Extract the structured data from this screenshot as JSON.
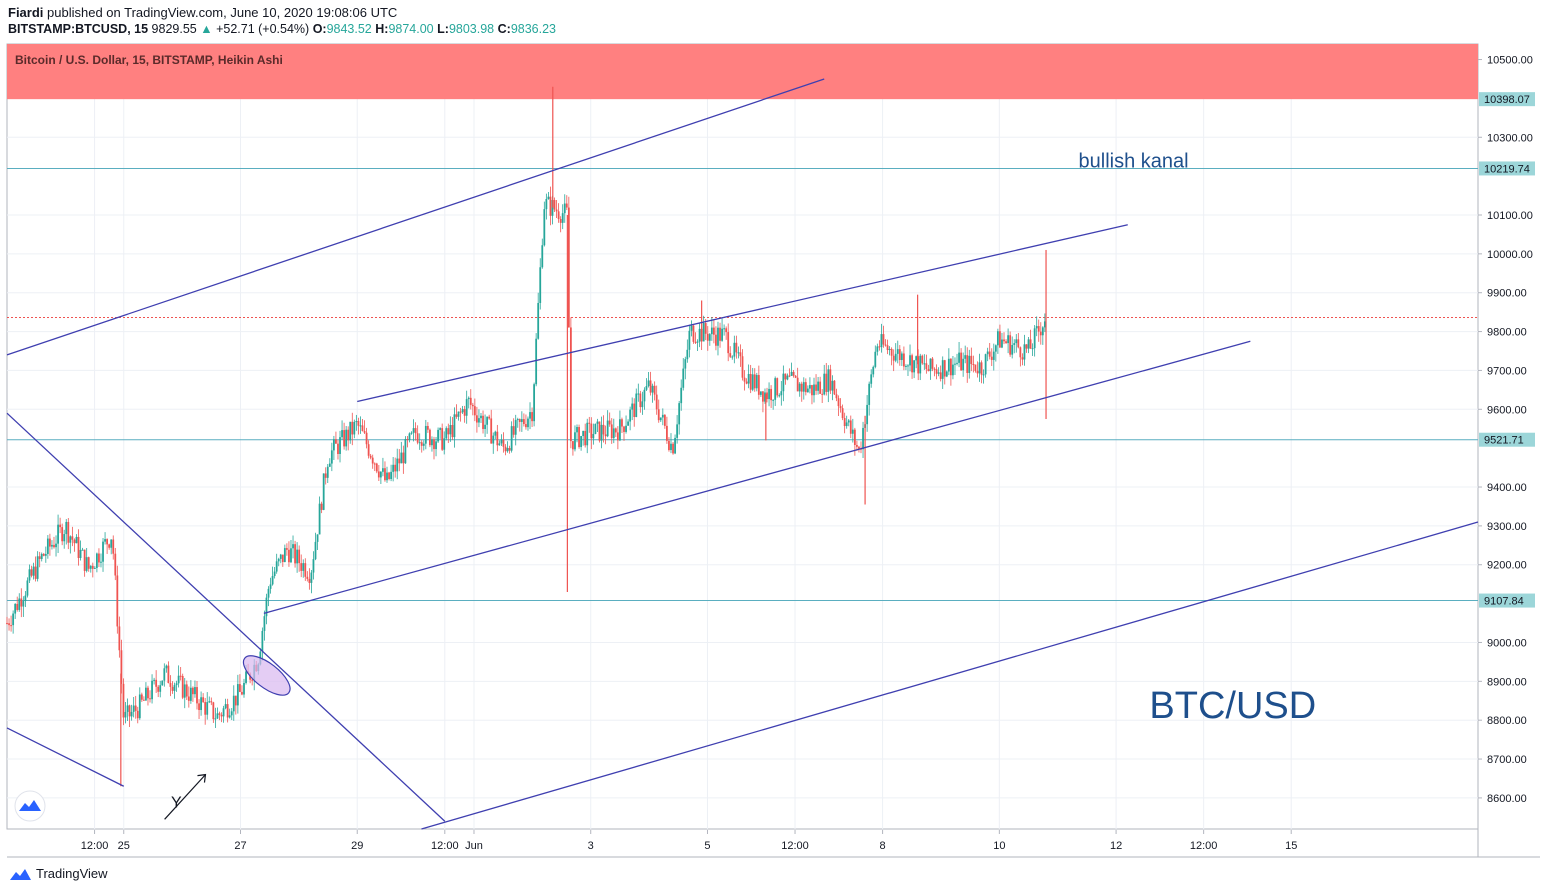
{
  "header": {
    "publisher": "Fiardi",
    "published_text": "published on TradingView.com, June 10, 2020 19:08:06 UTC",
    "symbol": "BITSTAMP:BTCUSD, 15",
    "last": "9829.55",
    "change": "+52.71 (+0.54%)",
    "o_label": "O:",
    "o": "9843.52",
    "h_label": "H:",
    "h": "9874.00",
    "l_label": "L:",
    "l": "9803.98",
    "c_label": "C:",
    "c": "9836.23"
  },
  "chart_label": "Bitcoin / U.S. Dollar, 15, BITSTAMP, Heikin Ashi",
  "footer": {
    "brand": "TradingView"
  },
  "colors": {
    "up": "#26a69a",
    "down": "#ef5350",
    "trend": "#3f3fb0",
    "hline": "#5aaec0",
    "zone": "#ff8080",
    "text_blue": "#1e4f8c"
  },
  "chart_data": {
    "type": "candlestick",
    "title": "Bitcoin / U.S. Dollar, 15, BITSTAMP, Heikin Ashi",
    "ylim": [
      8520,
      10540
    ],
    "y_ticks": [
      "10500.00",
      "10300.00",
      "10100.00",
      "10000.00",
      "9900.00",
      "9800.00",
      "9700.00",
      "9600.00",
      "9400.00",
      "9300.00",
      "9200.00",
      "9000.00",
      "8900.00",
      "8800.00",
      "8700.00",
      "8600.00"
    ],
    "x_ticks": [
      "12:00",
      "25",
      "27",
      "29",
      "12:00",
      "Jun",
      "3",
      "5",
      "12:00",
      "8",
      "10",
      "12",
      "12:00",
      "15"
    ],
    "x_tick_days": [
      24.5,
      25,
      27,
      29,
      30.5,
      31,
      33,
      35,
      36.5,
      38,
      40,
      42,
      43.5,
      45
    ],
    "xlim_days": [
      23.0,
      48.2
    ],
    "price_labels": [
      {
        "value": 10398.07,
        "label": "10398.07",
        "style": "zone"
      },
      {
        "value": 10219.74,
        "label": "10219.74",
        "style": "line"
      },
      {
        "value": 9521.71,
        "label": "9521.71",
        "style": "line"
      },
      {
        "value": 9107.84,
        "label": "9107.84",
        "style": "line"
      }
    ],
    "resistance_zone": [
      10398.07,
      10540
    ],
    "current_price": 9836.23,
    "annotations": [
      {
        "text": "bullish kanal",
        "day": 42.3,
        "price": 10222
      },
      {
        "text": "BTC/USD",
        "day": 44.0,
        "price": 8805
      },
      {
        "text": "Y",
        "day": 25.9,
        "price": 8575
      }
    ],
    "key_points": [
      [
        23.0,
        9050
      ],
      [
        23.6,
        9220
      ],
      [
        24.0,
        9300
      ],
      [
        24.4,
        9190
      ],
      [
        24.8,
        9280
      ],
      [
        25.0,
        8800
      ],
      [
        25.3,
        8840
      ],
      [
        25.7,
        8920
      ],
      [
        26.2,
        8860
      ],
      [
        26.6,
        8810
      ],
      [
        27.0,
        8870
      ],
      [
        27.3,
        8960
      ],
      [
        27.5,
        9160
      ],
      [
        27.8,
        9240
      ],
      [
        28.2,
        9180
      ],
      [
        28.5,
        9480
      ],
      [
        29.0,
        9560
      ],
      [
        29.5,
        9410
      ],
      [
        30.0,
        9540
      ],
      [
        30.5,
        9520
      ],
      [
        30.9,
        9620
      ],
      [
        31.5,
        9500
      ],
      [
        32.0,
        9600
      ],
      [
        32.2,
        10130
      ],
      [
        32.6,
        10100
      ],
      [
        32.65,
        9520
      ],
      [
        33.0,
        9540
      ],
      [
        33.5,
        9550
      ],
      [
        34.0,
        9660
      ],
      [
        34.4,
        9500
      ],
      [
        34.7,
        9800
      ],
      [
        35.3,
        9790
      ],
      [
        35.6,
        9700
      ],
      [
        36.0,
        9640
      ],
      [
        36.4,
        9670
      ],
      [
        36.8,
        9650
      ],
      [
        37.1,
        9680
      ],
      [
        37.4,
        9560
      ],
      [
        37.6,
        9490
      ],
      [
        37.9,
        9770
      ],
      [
        38.3,
        9740
      ],
      [
        38.8,
        9700
      ],
      [
        39.3,
        9720
      ],
      [
        39.7,
        9710
      ],
      [
        40.0,
        9780
      ],
      [
        40.5,
        9750
      ],
      [
        40.8,
        9840
      ]
    ],
    "wicks": [
      {
        "day": 24.95,
        "low": 8630
      },
      {
        "day": 32.35,
        "high": 10430
      },
      {
        "day": 32.6,
        "low": 9130
      },
      {
        "day": 36.0,
        "low": 9520
      },
      {
        "day": 37.7,
        "low": 9355
      },
      {
        "day": 40.8,
        "high": 10010,
        "low": 9575
      },
      {
        "day": 38.6,
        "high": 9895
      },
      {
        "day": 34.9,
        "high": 9880
      }
    ],
    "trendlines": [
      {
        "name": "upper-channel",
        "from": [
          23.0,
          9740
        ],
        "to": [
          37.0,
          10450
        ]
      },
      {
        "name": "bullish-channel-top",
        "from": [
          29.0,
          9620
        ],
        "to": [
          42.2,
          10075
        ]
      },
      {
        "name": "bullish-channel-bottom",
        "from": [
          27.4,
          9075
        ],
        "to": [
          44.3,
          9775
        ]
      },
      {
        "name": "lower-channel",
        "from": [
          30.1,
          8520
        ],
        "to": [
          48.2,
          9310
        ]
      },
      {
        "name": "descending-resistance",
        "from": [
          23.0,
          9590
        ],
        "to": [
          30.5,
          8540
        ]
      },
      {
        "name": "descending-support",
        "from": [
          23.0,
          8780
        ],
        "to": [
          25.0,
          8630
        ]
      }
    ]
  }
}
